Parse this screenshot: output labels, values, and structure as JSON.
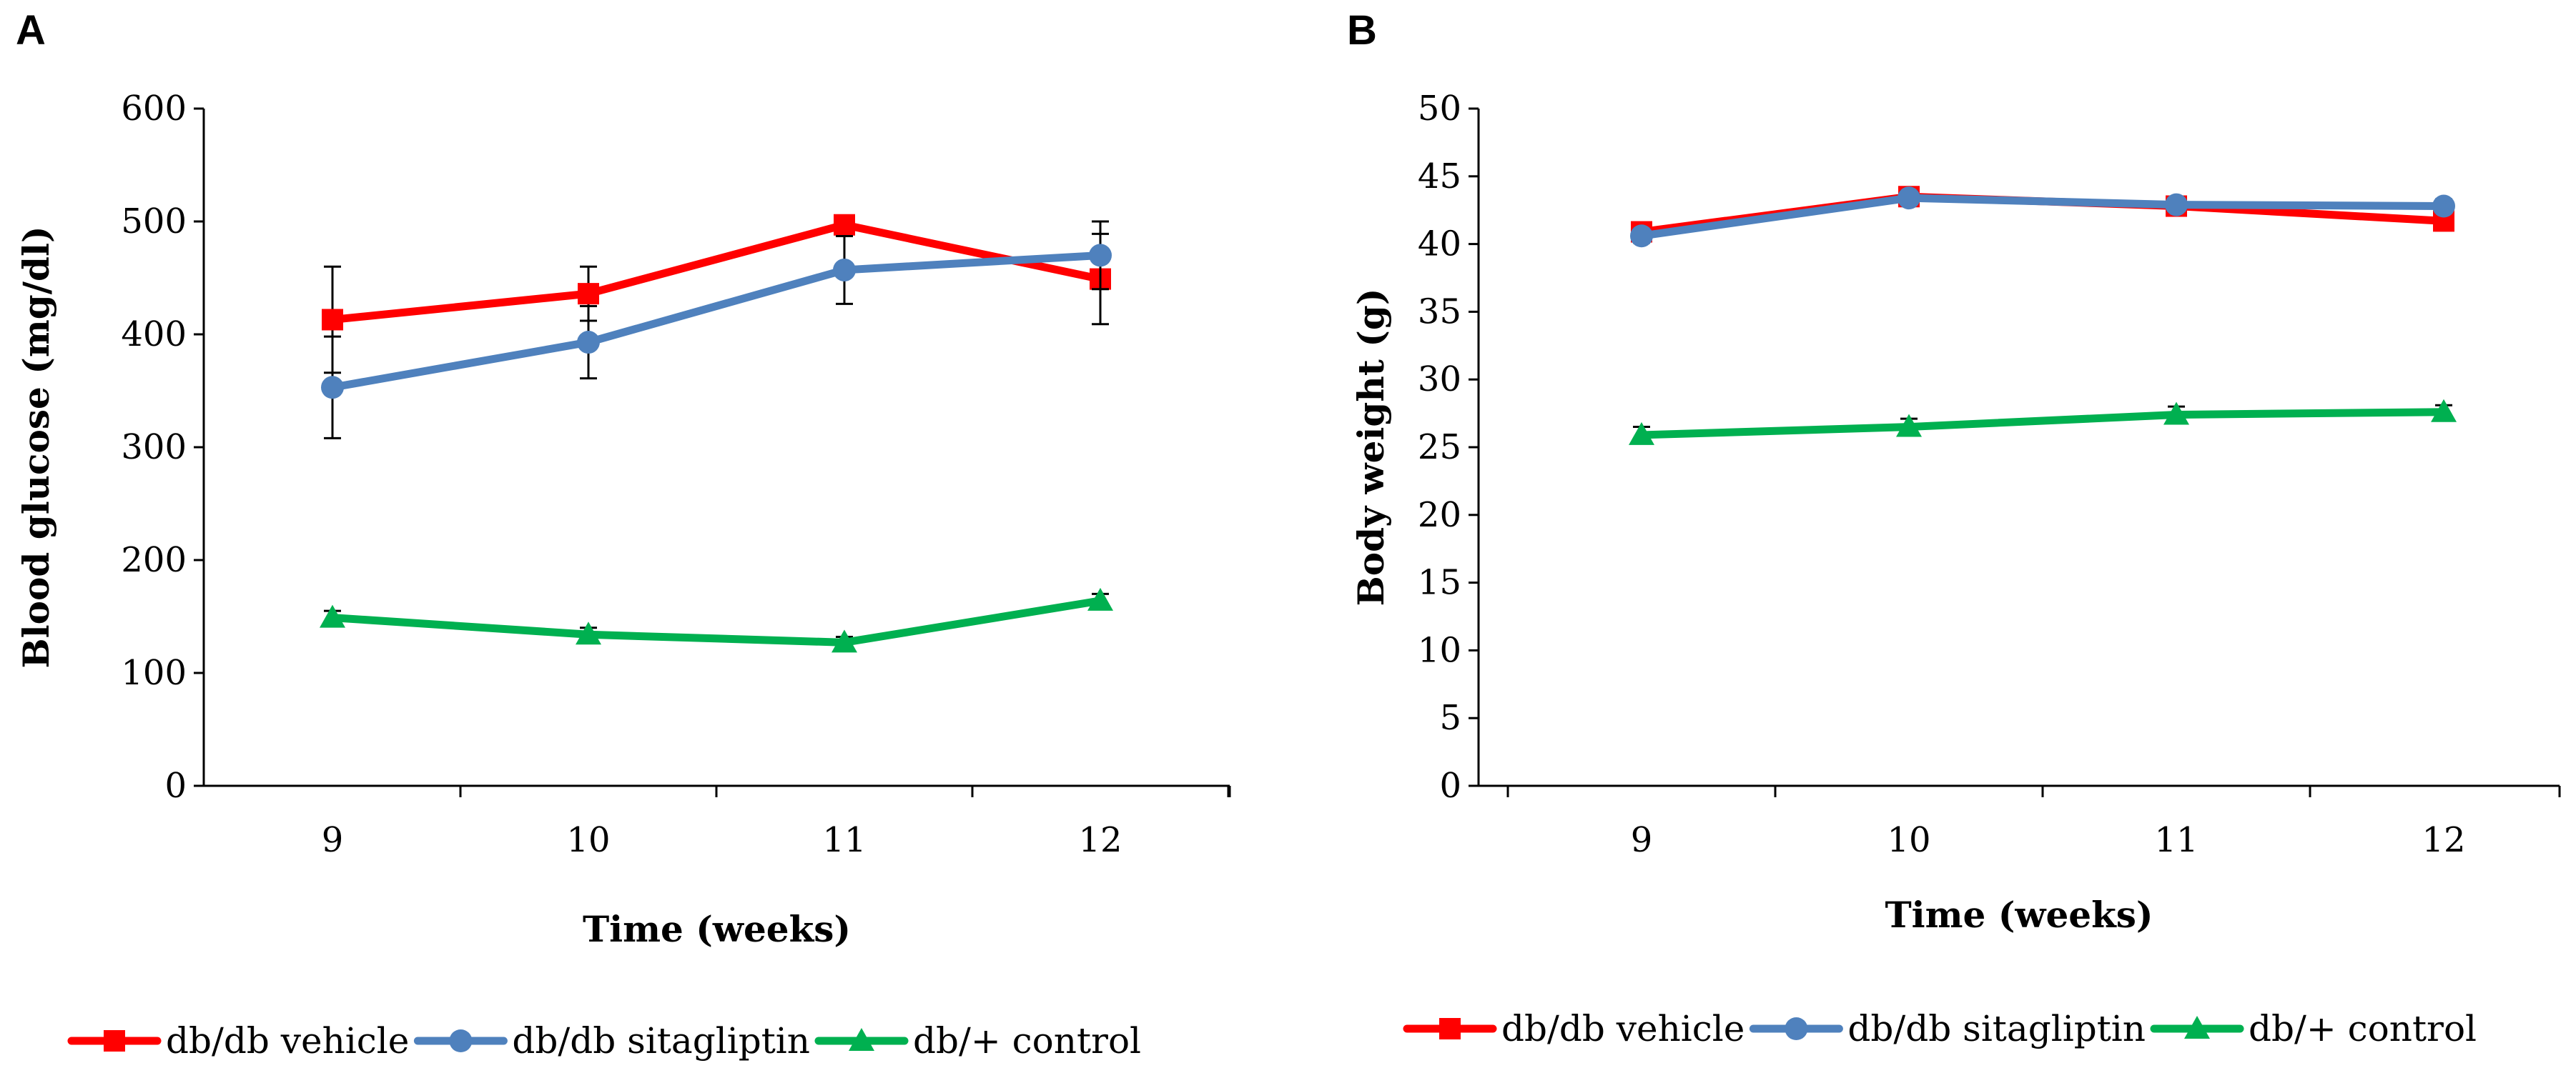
{
  "chart_data": [
    {
      "type": "line",
      "panel": "A",
      "title": "",
      "xlabel": "Time (weeks)",
      "ylabel": "Blood glucose (mg/dl)",
      "categories": [
        "9",
        "10",
        "11",
        "12"
      ],
      "ylim": [
        0,
        600
      ],
      "yticks": [
        "0",
        "100",
        "200",
        "300",
        "400",
        "500",
        "600"
      ],
      "grid": false,
      "legend": "bottom",
      "series": [
        {
          "name": "db/db vehicle",
          "color": "#ff0000",
          "marker": "square",
          "values": [
            413,
            436,
            497,
            449
          ],
          "errors": [
            47,
            24,
            0,
            40
          ]
        },
        {
          "name": "db/db sitagliptin",
          "color": "#4f81bd",
          "marker": "circle",
          "values": [
            353,
            393,
            457,
            470
          ],
          "errors": [
            45,
            32,
            30,
            30
          ]
        },
        {
          "name": "db/+ control",
          "color": "#00b050",
          "marker": "triangle",
          "values": [
            149,
            134,
            127,
            164
          ],
          "errors": [
            6,
            6,
            5,
            6
          ]
        }
      ]
    },
    {
      "type": "line",
      "panel": "B",
      "title": "",
      "xlabel": "Time (weeks)",
      "ylabel": "Body weight (g)",
      "categories": [
        "9",
        "10",
        "11",
        "12"
      ],
      "ylim": [
        0,
        50
      ],
      "yticks": [
        "0",
        "5",
        "10",
        "15",
        "20",
        "25",
        "30",
        "35",
        "40",
        "45",
        "50"
      ],
      "grid": false,
      "legend": "bottom",
      "series": [
        {
          "name": "db/db vehicle",
          "color": "#ff0000",
          "marker": "square",
          "values": [
            40.9,
            43.5,
            42.8,
            41.7
          ],
          "errors": [
            0.6,
            0.5,
            0.5,
            0.7
          ]
        },
        {
          "name": "db/db sitagliptin",
          "color": "#4f81bd",
          "marker": "circle",
          "values": [
            40.6,
            43.4,
            42.9,
            42.8
          ],
          "errors": [
            0.5,
            0.5,
            0.5,
            0.5
          ]
        },
        {
          "name": "db/+ control",
          "color": "#00b050",
          "marker": "triangle",
          "values": [
            25.9,
            26.5,
            27.4,
            27.6
          ],
          "errors": [
            0.6,
            0.6,
            0.6,
            0.5
          ]
        }
      ]
    }
  ]
}
